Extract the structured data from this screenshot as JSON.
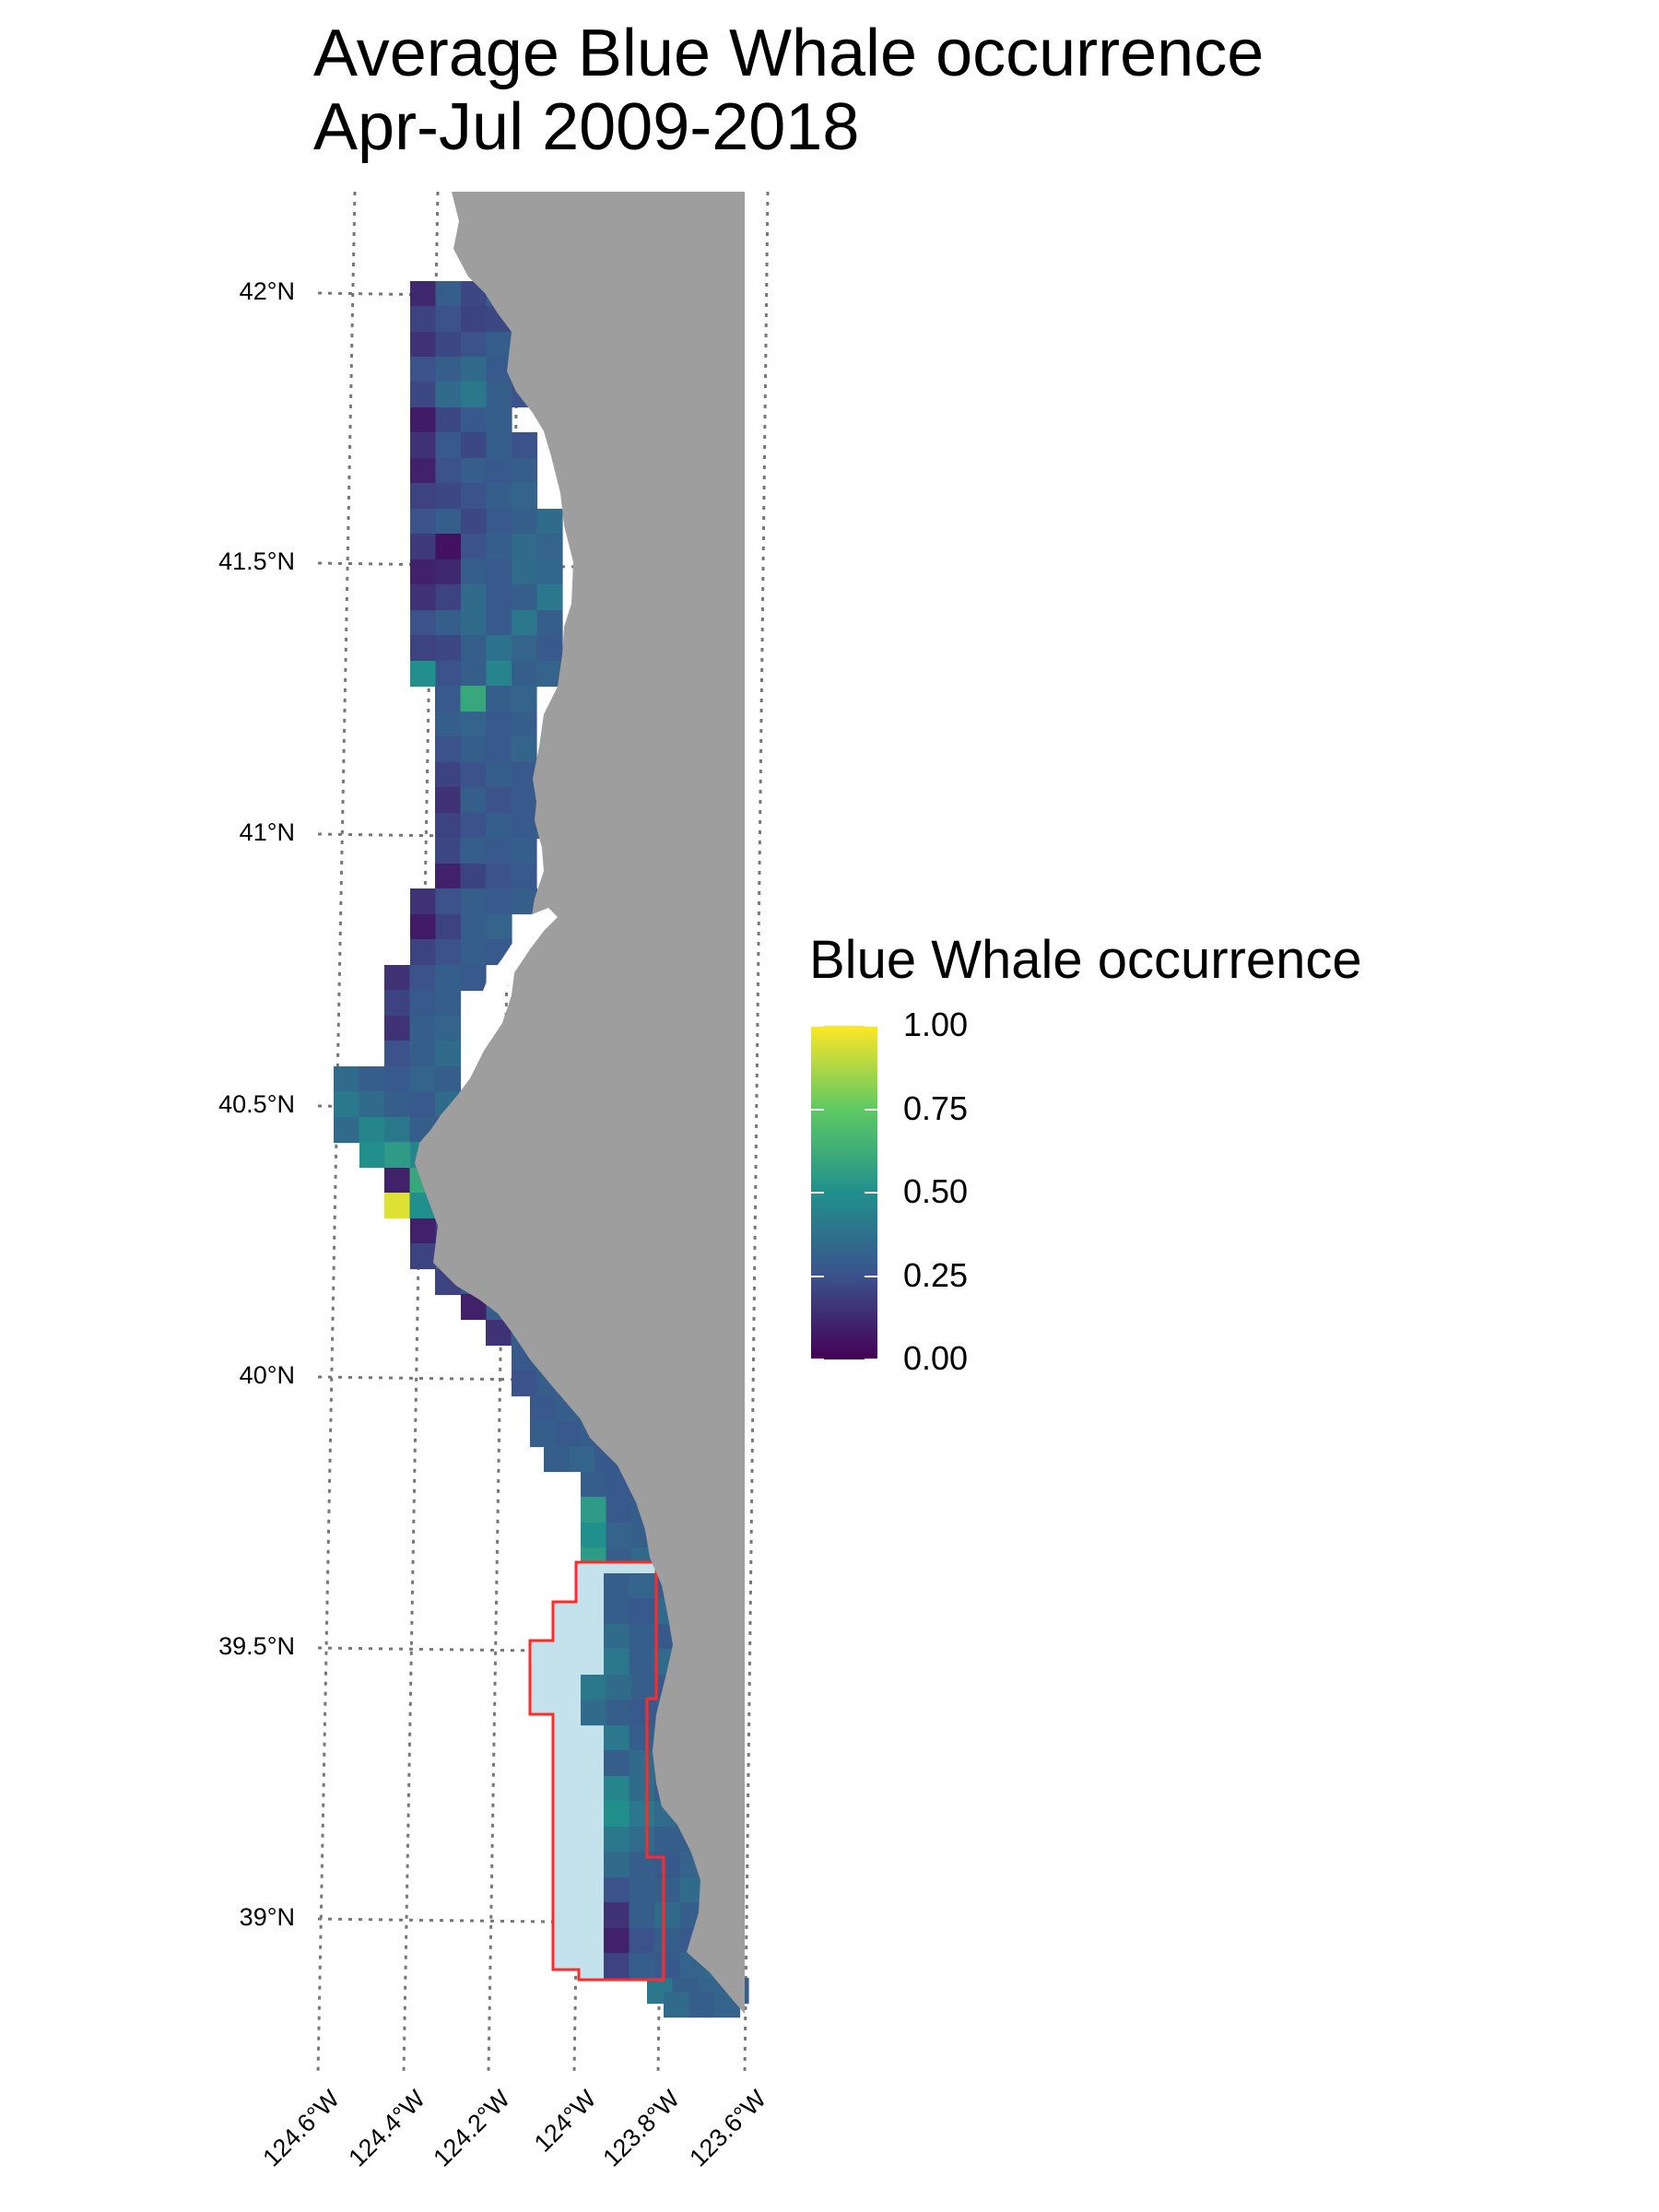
{
  "title": {
    "line1": "Average Blue Whale occurrence",
    "line2": "Apr-Jul 2009-2018"
  },
  "map": {
    "lat_ticks": [
      "42°N",
      "41.5°N",
      "41°N",
      "40.5°N",
      "40°N",
      "39.5°N",
      "39°N"
    ],
    "lon_ticks": [
      "124.6°W",
      "124.4°W",
      "124.2°W",
      "124°W",
      "123.8°W",
      "123.6°W"
    ],
    "lat_range": [
      38.8,
      42.2
    ],
    "lon_range": [
      -124.6,
      -123.6
    ],
    "land_color": "#9e9e9e",
    "highlight_region_color": "#c4e2ec",
    "highlight_border_color": "#ff2a2a",
    "graticule": "dotted"
  },
  "legend": {
    "title": "Blue Whale occurrence",
    "labels": [
      "1.00",
      "0.75",
      "0.50",
      "0.25",
      "0.00"
    ],
    "colormap": "viridis",
    "range": [
      0,
      1
    ]
  }
}
